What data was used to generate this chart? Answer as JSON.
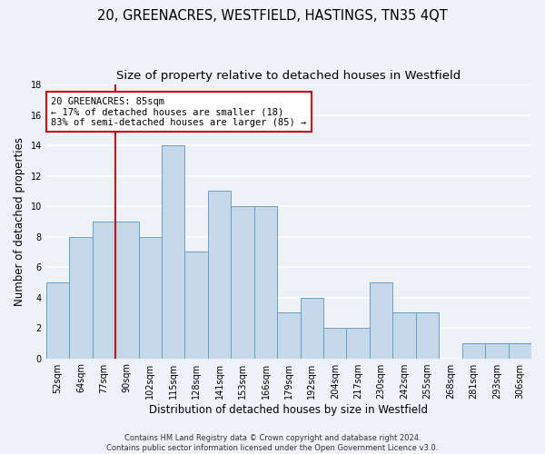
{
  "title": "20, GREENACRES, WESTFIELD, HASTINGS, TN35 4QT",
  "subtitle": "Size of property relative to detached houses in Westfield",
  "xlabel": "Distribution of detached houses by size in Westfield",
  "ylabel": "Number of detached properties",
  "categories": [
    "52sqm",
    "64sqm",
    "77sqm",
    "90sqm",
    "102sqm",
    "115sqm",
    "128sqm",
    "141sqm",
    "153sqm",
    "166sqm",
    "179sqm",
    "192sqm",
    "204sqm",
    "217sqm",
    "230sqm",
    "242sqm",
    "255sqm",
    "268sqm",
    "281sqm",
    "293sqm",
    "306sqm"
  ],
  "values": [
    5,
    8,
    9,
    9,
    8,
    14,
    7,
    11,
    10,
    10,
    3,
    4,
    2,
    2,
    5,
    3,
    3,
    0,
    1,
    1,
    1
  ],
  "bar_color": "#c5d8ea",
  "bar_edge_color": "#6a9ec0",
  "line_color": "#cc0000",
  "line_x_index": 2.5,
  "annotation_text": "20 GREENACRES: 85sqm\n← 17% of detached houses are smaller (18)\n83% of semi-detached houses are larger (85) →",
  "annotation_box_facecolor": "#ffffff",
  "annotation_box_edgecolor": "#cc0000",
  "ylim": [
    0,
    18
  ],
  "yticks": [
    0,
    2,
    4,
    6,
    8,
    10,
    12,
    14,
    16,
    18
  ],
  "footer1": "Contains HM Land Registry data © Crown copyright and database right 2024.",
  "footer2": "Contains public sector information licensed under the Open Government Licence v3.0.",
  "fig_facecolor": "#eef2f7",
  "ax_facecolor": "#eef2f7",
  "grid_color": "#ffffff",
  "title_fontsize": 10.5,
  "subtitle_fontsize": 9.5,
  "tick_fontsize": 7,
  "ylabel_fontsize": 8.5,
  "xlabel_fontsize": 8.5,
  "footer_fontsize": 6,
  "annot_fontsize": 7.5
}
